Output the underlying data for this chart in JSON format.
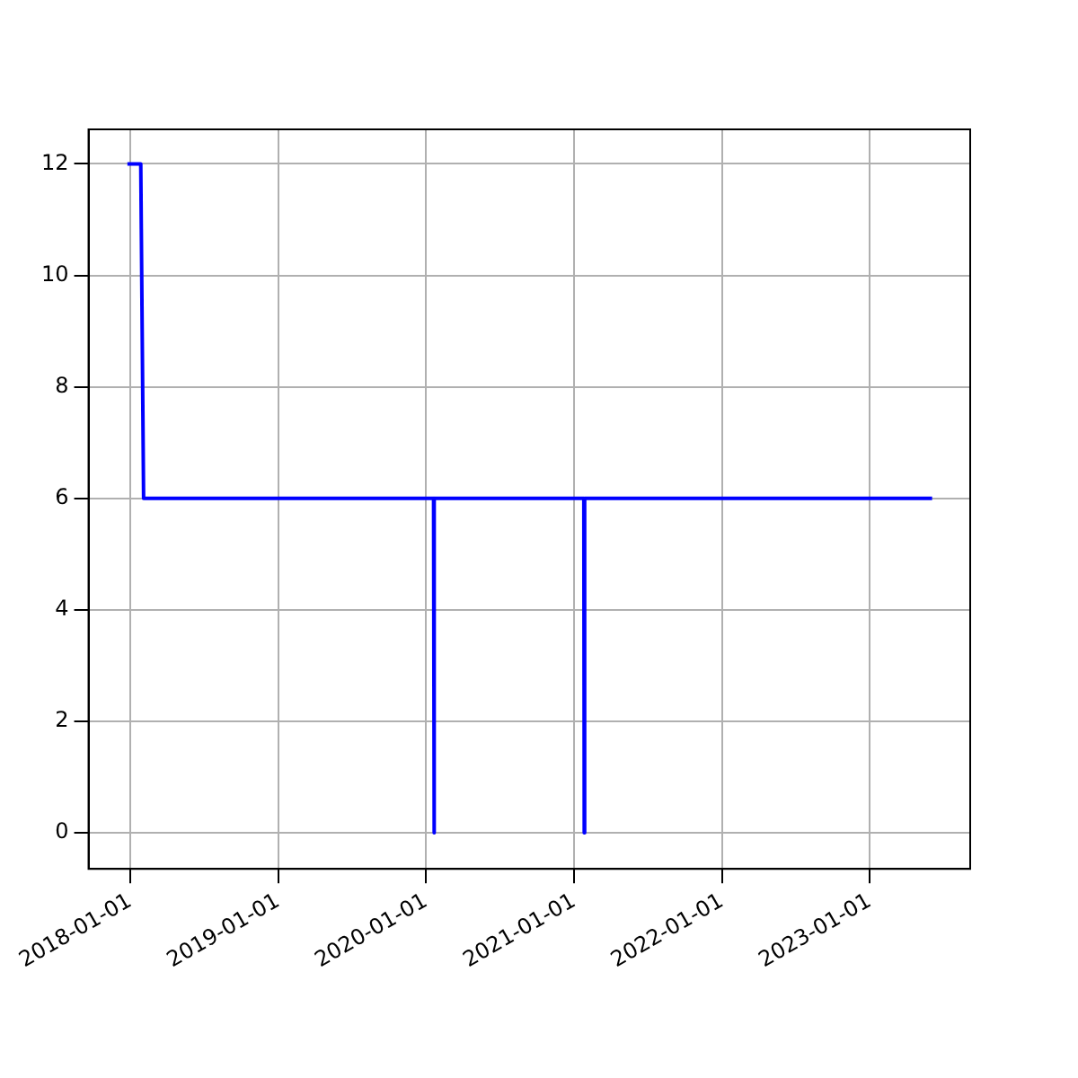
{
  "chart_data": {
    "type": "line",
    "x": [
      "2017-12-25",
      "2018-01-27",
      "2018-02-03",
      "2020-01-20",
      "2020-01-21",
      "2020-01-22",
      "2021-01-25",
      "2021-01-26",
      "2021-01-27",
      "2023-06-04"
    ],
    "series": [
      {
        "color": "#0000ff",
        "values": [
          12,
          12,
          6,
          6,
          0,
          6,
          6,
          0,
          6,
          6
        ]
      }
    ],
    "xlim": [
      "2017-09-20",
      "2023-09-06"
    ],
    "xticks": [
      {
        "value": "2018-01-01",
        "label": "2018-01-01"
      },
      {
        "value": "2019-01-01",
        "label": "2019-01-01"
      },
      {
        "value": "2020-01-01",
        "label": "2020-01-01"
      },
      {
        "value": "2021-01-01",
        "label": "2021-01-01"
      },
      {
        "value": "2022-01-01",
        "label": "2022-01-01"
      },
      {
        "value": "2023-01-01",
        "label": "2023-01-01"
      }
    ],
    "ylim": [
      -0.65,
      12.62
    ],
    "yticks": [
      0,
      2,
      4,
      6,
      8,
      10,
      12
    ],
    "grid": true,
    "marker": "none",
    "line_style": "solid"
  }
}
